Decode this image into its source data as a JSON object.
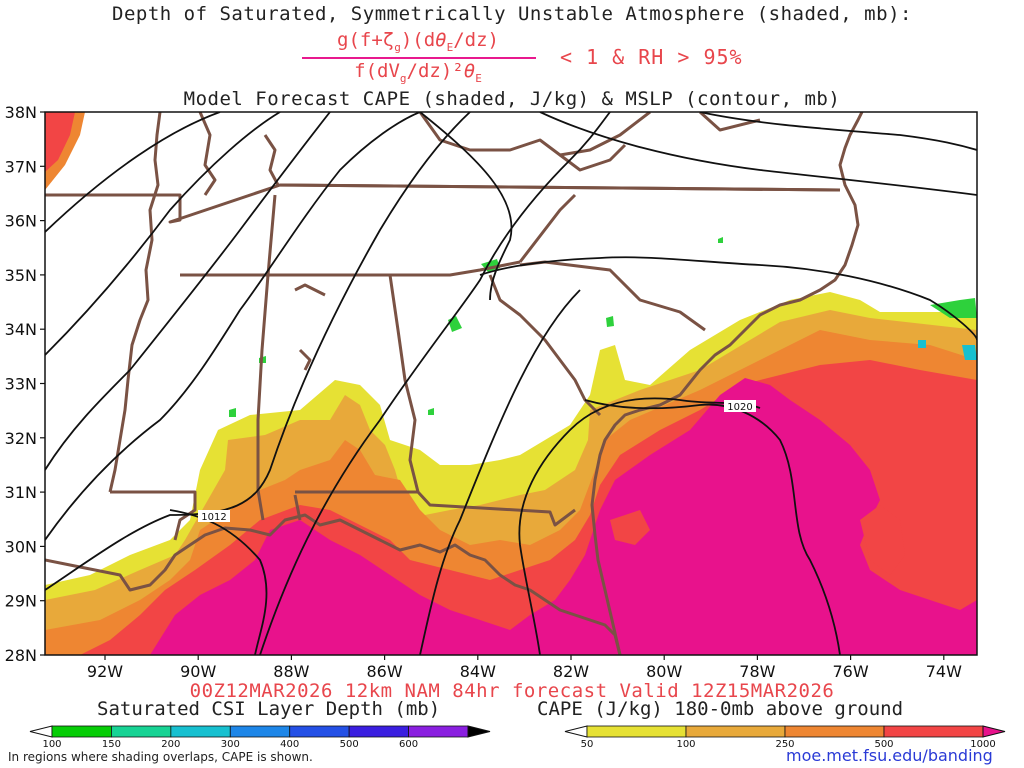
{
  "title": {
    "line1": "Depth of Saturated, Symmetrically Unstable Atmosphere (shaded, mb):",
    "numerator": "g(f+ζg)(dθE/dz)",
    "denominator": "f(dVg/dz)²θE",
    "condition": "< 1 & RH > 95%",
    "line3": "Model Forecast CAPE (shaded, J/kg) & MSLP (contour, mb)"
  },
  "map": {
    "lat_ticks": [
      "38N",
      "37N",
      "36N",
      "35N",
      "34N",
      "33N",
      "32N",
      "31N",
      "30N",
      "29N",
      "28N"
    ],
    "lon_ticks": [
      "92W",
      "90W",
      "88W",
      "86W",
      "84W",
      "82W",
      "80W",
      "78W",
      "76W",
      "74W"
    ],
    "isobar_labels": [
      "1012",
      "1020"
    ],
    "colors": {
      "land_border": "#7a5244",
      "isobar": "#111111",
      "cape_50": "#e6e134",
      "cape_100": "#e8a93a",
      "cape_250": "#ee8632",
      "cape_500": "#f24545",
      "cape_1000": "#e8128c",
      "csi": "#2ed13c"
    }
  },
  "valid_line": "00Z12MAR2026 12km NAM 84hr forecast Valid 12Z15MAR2026",
  "colorbar_csi": {
    "title": "Saturated CSI Layer Depth (mb)",
    "ticks": [
      "100",
      "150",
      "200",
      "300",
      "400",
      "500",
      "600"
    ],
    "colors": [
      "#06cd06",
      "#17d394",
      "#17c0d0",
      "#1d86e8",
      "#2450e6",
      "#3a1ee0",
      "#8a1fe0",
      "#000000"
    ]
  },
  "colorbar_cape": {
    "title": "CAPE (J/kg) 180-0mb above ground",
    "ticks": [
      "50",
      "100",
      "250",
      "500",
      "1000"
    ],
    "colors": [
      "#e6e134",
      "#e8a93a",
      "#ee8632",
      "#f24545",
      "#e8128c"
    ]
  },
  "footnote": "In regions where shading overlaps, CAPE is shown.",
  "website": "moe.met.fsu.edu/banding"
}
